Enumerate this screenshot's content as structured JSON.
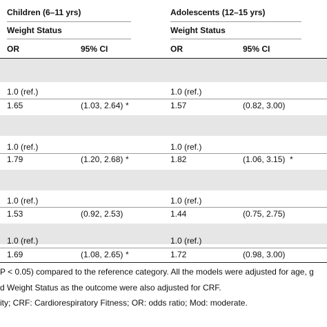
{
  "header": {
    "group_left": "Children (6–11 yrs)",
    "group_right": "Adolescents (12–15 yrs)",
    "subhead_left": "Weight Status",
    "subhead_right": "Weight Status",
    "col_or_left": "OR",
    "col_ci_left": "95% CI",
    "col_or_right": "OR",
    "col_ci_right": "95% CI"
  },
  "blocks": [
    {
      "ref": {
        "or_left": "1.0 (ref.)",
        "or_right": "1.0 (ref.)"
      },
      "row": {
        "or_left": "1.65",
        "ci_left": "(1.03, 2.64)",
        "sig_left": "*",
        "or_right": "1.57",
        "ci_right": "(0.82, 3.00)",
        "sig_right": ""
      }
    },
    {
      "ref": {
        "or_left": "1.0 (ref.)",
        "or_right": "1.0 (ref.)"
      },
      "row": {
        "or_left": "1.79",
        "ci_left": "(1.20, 2.68)",
        "sig_left": "*",
        "or_right": "1.82",
        "ci_right": "(1.06, 3.15)",
        "sig_right": "*"
      }
    },
    {
      "ref": {
        "or_left": "1.0 (ref.)",
        "or_right": "1.0 (ref.)"
      },
      "row": {
        "or_left": "1.53",
        "ci_left": "(0.92, 2.53)",
        "sig_left": "",
        "or_right": "1.44",
        "ci_right": "(0.75, 2.75)",
        "sig_right": ""
      }
    },
    {
      "ref": {
        "or_left": "1.0 (ref.)",
        "or_right": "1.0 (ref.)"
      },
      "row": {
        "or_left": "1.69",
        "ci_left": "(1.08, 2.65)",
        "sig_left": "*",
        "or_right": "1.72",
        "ci_right": "(0.98, 3.00)",
        "sig_right": ""
      }
    }
  ],
  "footnotes": {
    "line1": "P < 0.05) compared to the reference category. All the models were adjusted for age, g",
    "line2": "d Weight Status as the outcome were also adjusted for CRF.",
    "line3": "ity; CRF: Cardiorespiratory Fitness; OR: odds ratio; Mod: moderate."
  }
}
